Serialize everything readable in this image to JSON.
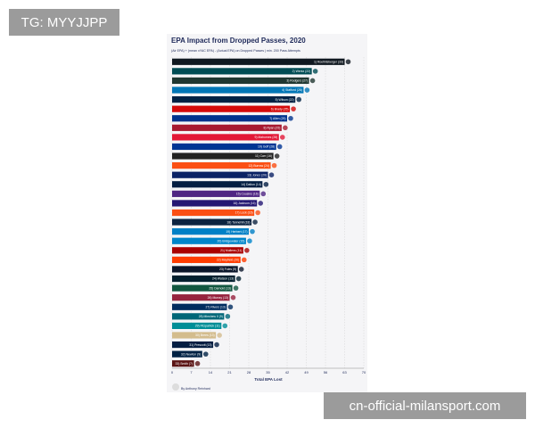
{
  "watermark_top": "TG: MYYJJPP",
  "watermark_bottom": "cn-official-milansport.com",
  "chart_data": {
    "type": "barh",
    "title": "EPA Impact from Dropped Passes, 2020",
    "subtitle": "(Air EPA) + (mean xYAC EPA) - (Actual EPA) on Dropped Passes | min. 200 Pass Attempts",
    "x_label": "Total EPA Lost",
    "credit": "By Anthony Reinhard",
    "categories": [
      "1) Roethlisberger (33)",
      "2) Wentz (22)",
      "3) Rodgers (27)",
      "4) Stafford (28)",
      "5) Wilson (22)",
      "6) Brady (25)",
      "7) Allen (25)",
      "8) Ryan (25)",
      "9) Mahomes (28)",
      "10) Goff (28)",
      "11) Carr (16)",
      "12) Burrow (24)",
      "13) Jones (20)",
      "14) Dalton (14)",
      "15) Cousins (16)",
      "16) Jackson (16)",
      "17) Lock (16)",
      "18) Tannehill (18)",
      "19) Herbert (17)",
      "20) Bridgewater (15)",
      "21) Mullens (11)",
      "22) Mayfield (20)",
      "23) Foles (9)",
      "24) Watson (13)",
      "25) Darnold (13)",
      "26) Murray (13)",
      "27) Rivers (13)",
      "28) Minshew II (9)",
      "29) Fitzpatrick (11)",
      "30) Brees (13)",
      "31) Prescott (13)",
      "32) Newton (9)",
      "33) Smith (7)"
    ],
    "values": [
      63,
      51,
      50,
      48,
      45,
      43,
      42,
      40,
      39,
      38,
      37,
      36,
      35,
      33,
      32,
      31,
      30,
      29,
      28,
      27,
      26,
      25,
      24,
      23,
      22,
      21,
      20,
      19,
      18,
      16,
      15,
      11,
      8
    ],
    "colors": [
      "#101820",
      "#004C54",
      "#203731",
      "#0076B6",
      "#002244",
      "#D50A0A",
      "#00338D",
      "#A71930",
      "#E31837",
      "#003594",
      "#222222",
      "#FB4F14",
      "#0B2265",
      "#041E42",
      "#4F2683",
      "#241773",
      "#FB4F14",
      "#0C2340",
      "#0080C6",
      "#0085CA",
      "#AA0000",
      "#FF3C00",
      "#0B162A",
      "#03202F",
      "#125740",
      "#97233F",
      "#002C5F",
      "#006778",
      "#008E97",
      "#D3BC8D",
      "#041E42",
      "#002244",
      "#5A1414"
    ],
    "xlim": [
      0,
      70
    ],
    "xticks": [
      0,
      7,
      14,
      21,
      28,
      35,
      42,
      49,
      56,
      63,
      70
    ],
    "grid": true
  }
}
